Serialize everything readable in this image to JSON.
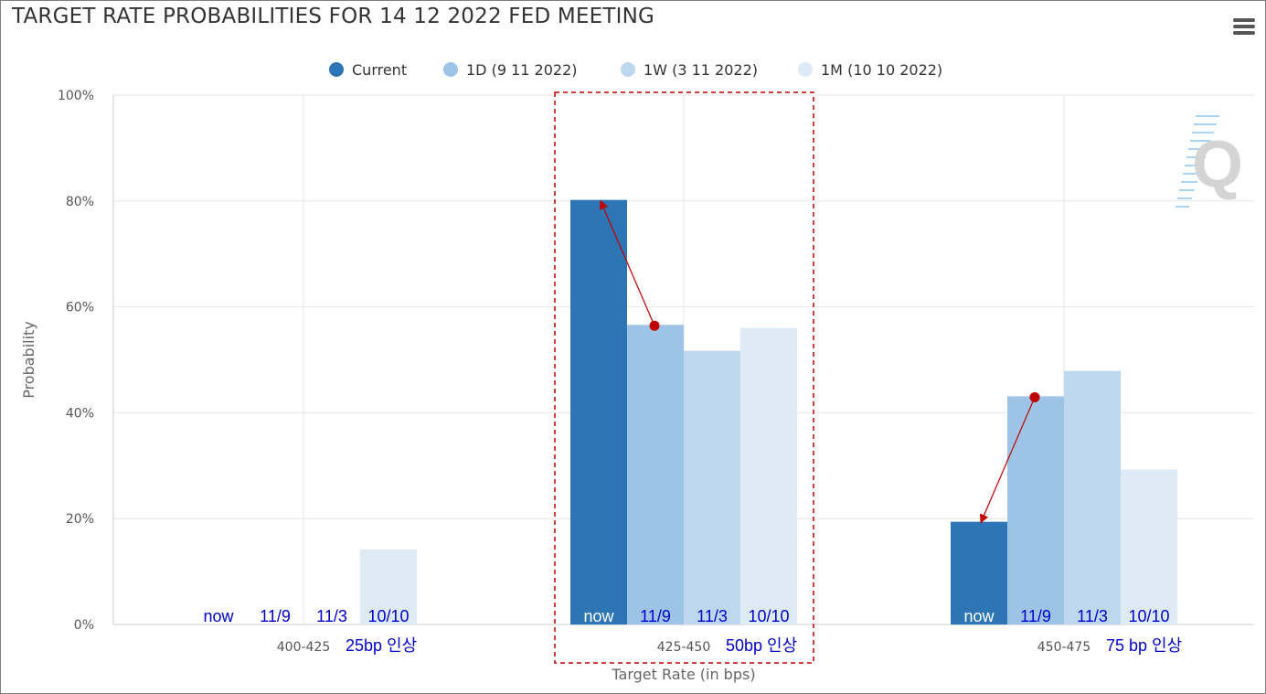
{
  "title": "TARGET RATE PROBABILITIES FOR 14 12 2022 FED MEETING",
  "menu_icon": "hamburger-menu-icon",
  "watermark_letter": "Q",
  "colors": {
    "series": [
      "#2e75b6",
      "#9dc3e6",
      "#bdd7ee",
      "#deebf7"
    ],
    "grid": "#e6e6e6",
    "axis": "#cccccc",
    "annotation_text": "#0000cc",
    "annotation_text_on_bar": "#ffffff",
    "arrow": "#c00000",
    "highlight_box": "#c00000"
  },
  "chart_data": {
    "type": "bar",
    "title": "TARGET RATE PROBABILITIES FOR 14 12 2022 FED MEETING",
    "xlabel": "Target Rate (in bps)",
    "ylabel": "Probability",
    "categories": [
      "400-425",
      "425-450",
      "450-475"
    ],
    "category_notes": [
      "25bp 인상",
      "50bp 인상",
      "75 bp 인상"
    ],
    "series": [
      {
        "name": "Current",
        "values": [
          0,
          80.2,
          19.4
        ]
      },
      {
        "name": "1D (9 11 2022)",
        "values": [
          0,
          56.6,
          43.1
        ]
      },
      {
        "name": "1W (3 11 2022)",
        "values": [
          0,
          51.7,
          47.9
        ]
      },
      {
        "name": "1M (10 10 2022)",
        "values": [
          14.2,
          56.0,
          29.3
        ]
      }
    ],
    "ylim": [
      0,
      100
    ],
    "yticks": [
      "0%",
      "20%",
      "40%",
      "60%",
      "80%",
      "100%"
    ],
    "grid": true,
    "legend_position": "top-center",
    "bar_labels": [
      "now",
      "11/9",
      "11/3",
      "10/10"
    ],
    "arrows": [
      {
        "category": "425-450",
        "from_series": 1,
        "to_series": 0
      },
      {
        "category": "450-475",
        "from_series": 1,
        "to_series": 0
      }
    ],
    "highlighted_category": "425-450"
  }
}
